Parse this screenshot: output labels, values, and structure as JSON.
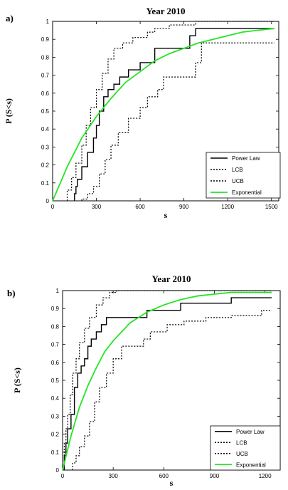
{
  "chart_data": [
    {
      "panel_letter": "a)",
      "type": "line",
      "title": "Year 2010",
      "xlabel": "s",
      "ylabel": "P (S<s)",
      "xlim": [
        0,
        1550
      ],
      "ylim": [
        0,
        1
      ],
      "xticks": [
        0,
        300,
        600,
        900,
        1200,
        1500
      ],
      "yticks": [
        0,
        0.1,
        0.2,
        0.3,
        0.4,
        0.5,
        0.6,
        0.7,
        0.8,
        0.9,
        1
      ],
      "grid": false,
      "legend_position": "bottom-right",
      "series": [
        {
          "name": "Power Law",
          "style": "solid",
          "color": "#000000",
          "step": true,
          "x": [
            150,
            160,
            170,
            200,
            240,
            280,
            300,
            320,
            350,
            380,
            420,
            460,
            520,
            600,
            700,
            940,
            980,
            1050,
            1520
          ],
          "y": [
            0.04,
            0.08,
            0.12,
            0.19,
            0.27,
            0.35,
            0.42,
            0.5,
            0.58,
            0.62,
            0.65,
            0.69,
            0.73,
            0.77,
            0.85,
            0.92,
            0.96,
            0.96,
            0.96
          ]
        },
        {
          "name": "LCB",
          "style": "dotted",
          "color": "#000000",
          "step": true,
          "x": [
            200,
            240,
            280,
            320,
            360,
            400,
            450,
            520,
            600,
            650,
            720,
            760,
            980,
            1020,
            1520
          ],
          "y": [
            0.01,
            0.04,
            0.08,
            0.15,
            0.23,
            0.31,
            0.38,
            0.46,
            0.52,
            0.58,
            0.62,
            0.69,
            0.77,
            0.88,
            0.88
          ]
        },
        {
          "name": "UCB",
          "style": "dotted",
          "color": "#000000",
          "step": true,
          "x": [
            100,
            130,
            160,
            200,
            230,
            260,
            300,
            340,
            380,
            420,
            480,
            550,
            650,
            700,
            800,
            980,
            1100,
            1520
          ],
          "y": [
            0.06,
            0.13,
            0.21,
            0.31,
            0.42,
            0.52,
            0.62,
            0.71,
            0.79,
            0.85,
            0.88,
            0.91,
            0.94,
            0.96,
            0.98,
            1.0,
            1.0,
            1.0
          ]
        },
        {
          "name": "Exponential",
          "style": "solid",
          "color": "#22e622",
          "step": false,
          "x": [
            0,
            100,
            200,
            300,
            400,
            500,
            600,
            700,
            800,
            900,
            1000,
            1100,
            1200,
            1300,
            1400,
            1520
          ],
          "y": [
            0,
            0.19,
            0.35,
            0.47,
            0.57,
            0.66,
            0.72,
            0.78,
            0.82,
            0.85,
            0.88,
            0.9,
            0.92,
            0.94,
            0.95,
            0.96
          ]
        }
      ]
    },
    {
      "panel_letter": "b)",
      "type": "line",
      "title": "Year 2010",
      "xlabel": "s",
      "ylabel": "P (S<s)",
      "xlim": [
        0,
        1290
      ],
      "ylim": [
        0,
        1
      ],
      "xticks": [
        0,
        300,
        600,
        900,
        1200
      ],
      "yticks": [
        0,
        0.1,
        0.2,
        0.3,
        0.4,
        0.5,
        0.6,
        0.7,
        0.8,
        0.9,
        1
      ],
      "grid": false,
      "legend_position": "bottom-right",
      "series": [
        {
          "name": "Power Law",
          "style": "solid",
          "color": "#000000",
          "step": true,
          "x": [
            10,
            20,
            30,
            50,
            70,
            90,
            110,
            130,
            150,
            170,
            200,
            230,
            260,
            500,
            700,
            1000,
            1240
          ],
          "y": [
            0.08,
            0.15,
            0.23,
            0.31,
            0.46,
            0.54,
            0.58,
            0.62,
            0.69,
            0.73,
            0.77,
            0.81,
            0.85,
            0.89,
            0.93,
            0.96,
            0.96
          ]
        },
        {
          "name": "LCB",
          "style": "dotted",
          "color": "#000000",
          "step": true,
          "x": [
            60,
            80,
            100,
            130,
            160,
            190,
            220,
            260,
            300,
            350,
            480,
            520,
            620,
            720,
            850,
            1000,
            1180,
            1240
          ],
          "y": [
            0.04,
            0.08,
            0.13,
            0.19,
            0.27,
            0.38,
            0.46,
            0.54,
            0.62,
            0.69,
            0.73,
            0.77,
            0.81,
            0.83,
            0.85,
            0.86,
            0.89,
            0.89
          ]
        },
        {
          "name": "UCB",
          "style": "dotted",
          "color": "#000000",
          "step": true,
          "x": [
            10,
            20,
            30,
            45,
            60,
            80,
            100,
            130,
            160,
            200,
            240,
            280,
            320,
            1240
          ],
          "y": [
            0.15,
            0.23,
            0.31,
            0.42,
            0.54,
            0.62,
            0.71,
            0.79,
            0.85,
            0.92,
            0.96,
            0.99,
            1.0,
            1.0
          ]
        },
        {
          "name": "Exponential",
          "style": "solid",
          "color": "#22e622",
          "step": false,
          "x": [
            0,
            50,
            100,
            150,
            200,
            250,
            300,
            400,
            500,
            600,
            700,
            800,
            900,
            1000,
            1100,
            1240
          ],
          "y": [
            0,
            0.19,
            0.35,
            0.47,
            0.57,
            0.66,
            0.72,
            0.82,
            0.88,
            0.92,
            0.95,
            0.97,
            0.98,
            0.99,
            0.99,
            0.99
          ]
        }
      ]
    }
  ]
}
